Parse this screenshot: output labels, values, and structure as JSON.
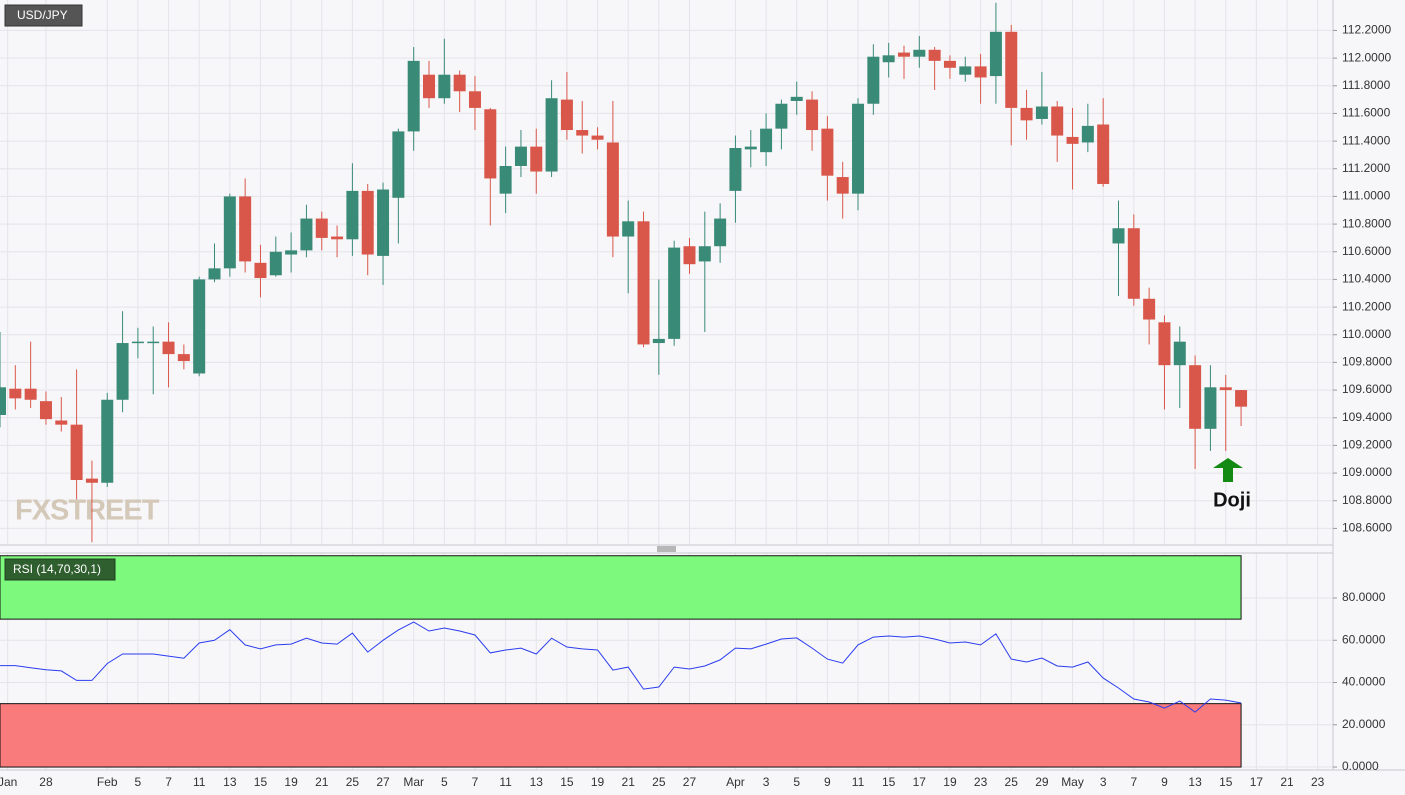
{
  "chart_data": [
    {
      "type": "candlestick",
      "title": "USD/JPY",
      "watermark": "FXSTREET",
      "annotation": "Doji",
      "up_color": "#3a8a78",
      "down_color": "#d9574a",
      "open": [
        109.42,
        109.61,
        109.61,
        109.52,
        109.38,
        109.35,
        108.96,
        108.93,
        109.53,
        109.94,
        109.94,
        109.95,
        109.86,
        109.72,
        110.4,
        110.48,
        111.0,
        110.52,
        110.43,
        110.58,
        110.61,
        110.84,
        110.71,
        110.69,
        111.04,
        110.57,
        110.99,
        111.47,
        111.88,
        111.71,
        111.88,
        111.76,
        111.63,
        111.02,
        111.22,
        111.36,
        111.18,
        111.7,
        111.48,
        111.44,
        111.39,
        110.71,
        110.82,
        109.94,
        109.97,
        110.64,
        110.53,
        110.64,
        111.04,
        111.34,
        111.32,
        111.49,
        111.69,
        111.7,
        111.49,
        111.14,
        111.02,
        111.67,
        111.97,
        112.04,
        112.01,
        112.06,
        111.98,
        111.88,
        111.94,
        111.87,
        112.19,
        111.64,
        111.56,
        111.65,
        111.43,
        111.39,
        111.52,
        110.66,
        110.77,
        110.26,
        110.09,
        109.78,
        109.78,
        109.32,
        109.62,
        109.6
      ],
      "high": [
        110.02,
        109.78,
        109.95,
        109.59,
        109.55,
        109.75,
        109.09,
        109.58,
        110.17,
        110.05,
        110.06,
        110.09,
        109.93,
        110.42,
        110.66,
        111.02,
        111.13,
        110.65,
        110.71,
        110.74,
        110.94,
        110.89,
        110.79,
        111.24,
        111.09,
        111.1,
        111.49,
        112.08,
        111.98,
        112.14,
        111.91,
        111.87,
        111.64,
        111.36,
        111.48,
        111.49,
        111.84,
        111.9,
        111.69,
        111.5,
        111.69,
        110.97,
        110.89,
        110.4,
        110.68,
        110.7,
        110.89,
        110.95,
        111.44,
        111.48,
        111.6,
        111.7,
        111.83,
        111.76,
        111.58,
        111.25,
        111.71,
        112.1,
        112.11,
        112.09,
        112.16,
        112.08,
        112.02,
        112.01,
        112.03,
        112.4,
        112.24,
        111.77,
        111.9,
        111.69,
        111.64,
        111.67,
        111.71,
        110.97,
        110.87,
        110.34,
        110.14,
        110.06,
        109.85,
        109.78,
        109.71,
        109.6
      ],
      "low": [
        109.33,
        109.46,
        109.47,
        109.35,
        109.3,
        108.81,
        108.5,
        108.9,
        109.44,
        109.83,
        109.57,
        109.62,
        109.75,
        109.7,
        110.38,
        110.42,
        110.45,
        110.27,
        110.42,
        110.45,
        110.56,
        110.61,
        110.56,
        110.57,
        110.43,
        110.36,
        110.66,
        111.33,
        111.64,
        111.67,
        111.61,
        111.48,
        110.79,
        110.88,
        111.14,
        111.02,
        111.14,
        111.41,
        111.31,
        111.34,
        110.56,
        110.3,
        109.91,
        109.71,
        109.92,
        110.44,
        110.02,
        110.52,
        110.81,
        111.21,
        111.22,
        111.34,
        111.59,
        111.33,
        110.97,
        110.84,
        110.9,
        111.59,
        111.86,
        111.85,
        111.93,
        111.77,
        111.85,
        111.83,
        111.67,
        111.67,
        111.37,
        111.41,
        111.52,
        111.25,
        111.05,
        111.32,
        111.07,
        110.28,
        110.21,
        109.93,
        109.46,
        109.47,
        109.03,
        109.16,
        109.16,
        109.34
      ],
      "close": [
        109.62,
        109.54,
        109.53,
        109.39,
        109.35,
        108.95,
        108.93,
        109.53,
        109.94,
        109.95,
        109.95,
        109.86,
        109.81,
        110.4,
        110.48,
        111.0,
        110.53,
        110.41,
        110.6,
        110.61,
        110.84,
        110.7,
        110.69,
        111.04,
        110.58,
        111.05,
        111.47,
        111.98,
        111.71,
        111.88,
        111.76,
        111.64,
        111.13,
        111.22,
        111.36,
        111.18,
        111.71,
        111.48,
        111.44,
        111.41,
        110.71,
        110.82,
        109.93,
        109.97,
        110.63,
        110.51,
        110.64,
        110.84,
        111.35,
        111.36,
        111.49,
        111.67,
        111.72,
        111.48,
        111.15,
        111.02,
        111.67,
        112.01,
        112.02,
        112.01,
        112.06,
        111.98,
        111.93,
        111.94,
        111.86,
        112.19,
        111.64,
        111.55,
        111.65,
        111.44,
        111.38,
        111.51,
        111.09,
        110.77,
        110.26,
        110.11,
        109.78,
        109.95,
        109.32,
        109.62,
        109.6,
        109.48
      ],
      "ylim": [
        108.48,
        112.42
      ],
      "yticks": [
        {
          "value": 108.6,
          "label": "108.6000"
        },
        {
          "value": 108.8,
          "label": "108.8000"
        },
        {
          "value": 109.0,
          "label": "109.0000"
        },
        {
          "value": 109.2,
          "label": "109.2000"
        },
        {
          "value": 109.4,
          "label": "109.4000"
        },
        {
          "value": 109.6,
          "label": "109.6000"
        },
        {
          "value": 109.8,
          "label": "109.8000"
        },
        {
          "value": 110.0,
          "label": "110.0000"
        },
        {
          "value": 110.2,
          "label": "110.2000"
        },
        {
          "value": 110.4,
          "label": "110.4000"
        },
        {
          "value": 110.6,
          "label": "110.6000"
        },
        {
          "value": 110.8,
          "label": "110.8000"
        },
        {
          "value": 111.0,
          "label": "111.0000"
        },
        {
          "value": 111.2,
          "label": "111.2000"
        },
        {
          "value": 111.4,
          "label": "111.4000"
        },
        {
          "value": 111.6,
          "label": "111.6000"
        },
        {
          "value": 111.8,
          "label": "111.8000"
        },
        {
          "value": 112.0,
          "label": "112.0000"
        },
        {
          "value": 112.2,
          "label": "112.2000"
        }
      ],
      "xlim": [
        0,
        87
      ],
      "xticks": [
        {
          "value": 0.5,
          "label": "Jan"
        },
        {
          "value": 3,
          "label": "28"
        },
        {
          "value": 7,
          "label": "Feb"
        },
        {
          "value": 9,
          "label": "5"
        },
        {
          "value": 11,
          "label": "7"
        },
        {
          "value": 13,
          "label": "11"
        },
        {
          "value": 15,
          "label": "13"
        },
        {
          "value": 17,
          "label": "15"
        },
        {
          "value": 19,
          "label": "19"
        },
        {
          "value": 21,
          "label": "21"
        },
        {
          "value": 23,
          "label": "25"
        },
        {
          "value": 25,
          "label": "27"
        },
        {
          "value": 27,
          "label": "Mar"
        },
        {
          "value": 29,
          "label": "5"
        },
        {
          "value": 31,
          "label": "7"
        },
        {
          "value": 33,
          "label": "11"
        },
        {
          "value": 35,
          "label": "13"
        },
        {
          "value": 37,
          "label": "15"
        },
        {
          "value": 39,
          "label": "19"
        },
        {
          "value": 41,
          "label": "21"
        },
        {
          "value": 43,
          "label": "25"
        },
        {
          "value": 45,
          "label": "27"
        },
        {
          "value": 48,
          "label": "Apr"
        },
        {
          "value": 50,
          "label": "3"
        },
        {
          "value": 52,
          "label": "5"
        },
        {
          "value": 54,
          "label": "9"
        },
        {
          "value": 56,
          "label": "11"
        },
        {
          "value": 58,
          "label": "15"
        },
        {
          "value": 60,
          "label": "17"
        },
        {
          "value": 62,
          "label": "19"
        },
        {
          "value": 64,
          "label": "23"
        },
        {
          "value": 66,
          "label": "25"
        },
        {
          "value": 68,
          "label": "29"
        },
        {
          "value": 70,
          "label": "May"
        },
        {
          "value": 72,
          "label": "3"
        },
        {
          "value": 74,
          "label": "7"
        },
        {
          "value": 76,
          "label": "9"
        },
        {
          "value": 78,
          "label": "13"
        },
        {
          "value": 80,
          "label": "15"
        },
        {
          "value": 82,
          "label": "17"
        },
        {
          "value": 84,
          "label": "21"
        },
        {
          "value": 86,
          "label": "23"
        }
      ],
      "grid": true
    },
    {
      "type": "line",
      "title": "RSI (14,70,30,1)",
      "color": "#2a3cf0",
      "values": [
        48,
        48,
        47,
        46,
        45.5,
        41,
        41,
        49,
        53.5,
        53.5,
        53.5,
        52.5,
        51.5,
        58.7,
        60,
        65,
        57.8,
        55.9,
        57.8,
        58.2,
        61,
        58.7,
        58.2,
        63.4,
        54.4,
        60,
        64.9,
        68.6,
        64.4,
        65.8,
        64.4,
        62.5,
        54,
        55.4,
        56.3,
        53.5,
        61,
        56.8,
        55.9,
        55.4,
        45.9,
        47.3,
        36.9,
        37.9,
        47.3,
        46.4,
        47.8,
        50.7,
        56.3,
        55.9,
        58.2,
        60.6,
        61.1,
        56.3,
        51.1,
        49.2,
        57.8,
        61.5,
        62,
        61.5,
        62,
        60.6,
        58.7,
        59.2,
        57.8,
        63,
        51.1,
        49.7,
        51.6,
        47.8,
        47.3,
        49.7,
        42.1,
        37.4,
        32.2,
        30.8,
        27.9,
        31.2,
        26,
        32.2,
        31.7,
        30.3
      ],
      "bands": [
        {
          "from": 70,
          "to": 100,
          "color": "#7dfa7d"
        },
        {
          "from": 0,
          "to": 30,
          "color": "#fa7b7b"
        }
      ],
      "ylim": [
        -1.4,
        101.3
      ],
      "yticks": [
        {
          "value": 0,
          "label": "0.0000"
        },
        {
          "value": 20,
          "label": "20.0000"
        },
        {
          "value": 40,
          "label": "40.0000"
        },
        {
          "value": 60,
          "label": "60.0000"
        },
        {
          "value": 80,
          "label": "80.0000"
        }
      ],
      "grid": true
    }
  ]
}
